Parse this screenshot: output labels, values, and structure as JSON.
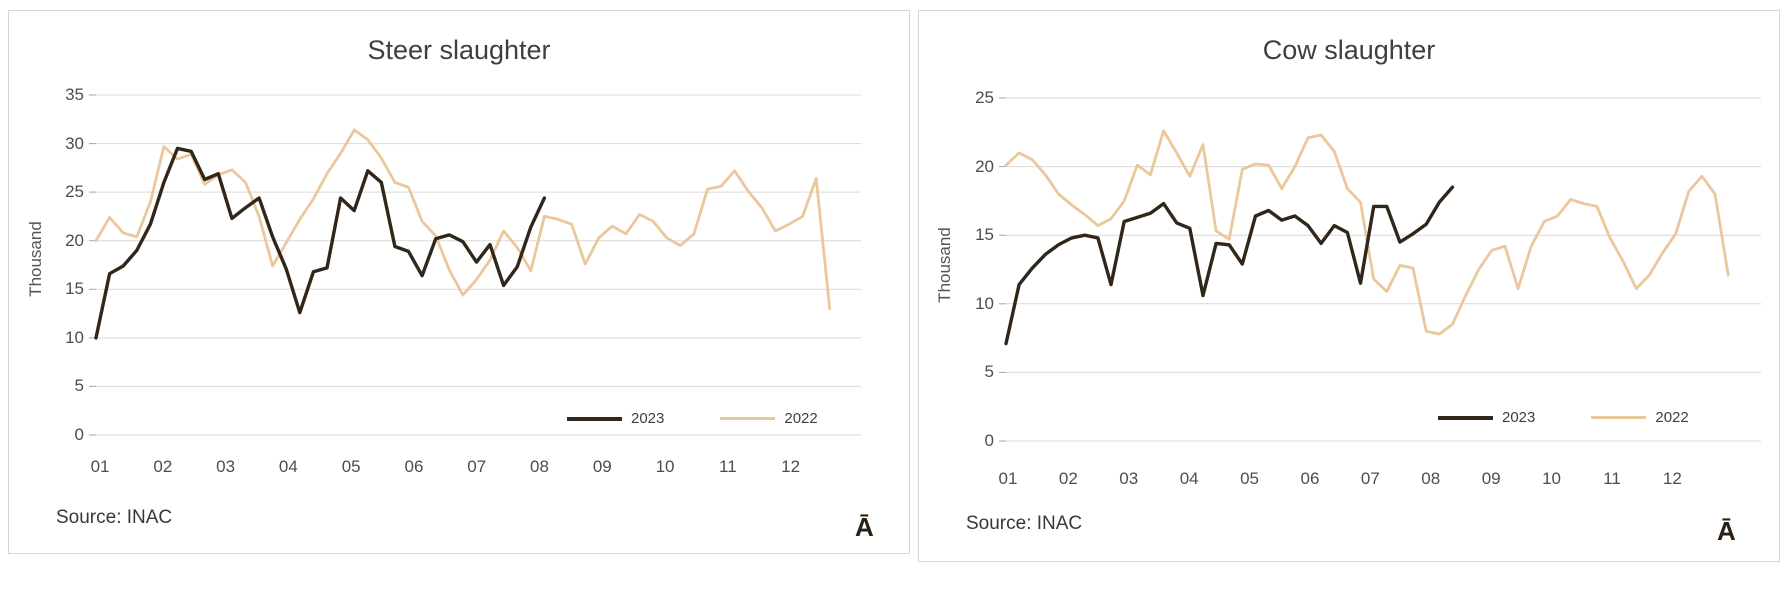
{
  "page": {
    "background": "#ffffff"
  },
  "colors": {
    "panel_border": "#d6d6d6",
    "gridline": "#d9d9d9",
    "axis_tick": "#a6a6a6",
    "axis_text": "#4d4d4d",
    "title_text": "#3f3f3f",
    "series_2023": "#31261a",
    "series_2022": "#ebc79c"
  },
  "chart_data": [
    {
      "type": "line",
      "title": "Steer slaughter",
      "ylabel": "Thousand",
      "xlabel": "",
      "source_note": "Source: INAC",
      "watermark": "Ā",
      "grid": true,
      "legend_position": "inside-bottom-right",
      "ylim": [
        0,
        35
      ],
      "yticks": [
        0,
        5,
        10,
        15,
        20,
        25,
        30,
        35
      ],
      "x_axis": {
        "labels": [
          "01",
          "02",
          "03",
          "04",
          "05",
          "06",
          "07",
          "08",
          "09",
          "10",
          "11",
          "12"
        ],
        "first_tick_week": 0.3,
        "weeks_per_month": 4.62,
        "total_week_slots": 56.3
      },
      "series": [
        {
          "label": "2023",
          "color_key": "series_2023",
          "stroke_width": 3.4,
          "values": [
            10.0,
            16.6,
            17.4,
            19.0,
            21.7,
            26.0,
            29.5,
            29.2,
            26.3,
            26.9,
            22.3,
            23.4,
            24.4,
            20.4,
            17.1,
            12.6,
            16.8,
            17.2,
            24.4,
            23.1,
            27.2,
            26.0,
            19.4,
            18.9,
            16.4,
            20.2,
            20.6,
            19.9,
            17.8,
            19.6,
            15.4,
            17.3,
            21.4,
            24.4
          ]
        },
        {
          "label": "2022",
          "color_key": "series_2022",
          "stroke_width": 2.8,
          "values": [
            20.0,
            22.4,
            20.8,
            20.4,
            24.0,
            29.7,
            28.4,
            28.9,
            25.8,
            26.8,
            27.3,
            26.0,
            22.5,
            17.4,
            19.8,
            22.2,
            24.3,
            26.9,
            29.0,
            31.4,
            30.4,
            28.5,
            26.0,
            25.5,
            22.0,
            20.5,
            17.0,
            14.4,
            16.0,
            18.0,
            21.0,
            19.3,
            16.9,
            22.5,
            22.2,
            21.7,
            17.6,
            20.3,
            21.5,
            20.7,
            22.7,
            22.0,
            20.3,
            19.5,
            20.7,
            25.3,
            25.6,
            27.2,
            25.1,
            23.4,
            21.0,
            21.7,
            22.5,
            26.4,
            13.0
          ]
        }
      ]
    },
    {
      "type": "line",
      "title": "Cow slaughter",
      "ylabel": "Thousand",
      "xlabel": "",
      "source_note": "Source: INAC",
      "watermark": "Ā",
      "grid": true,
      "legend_position": "inside-bottom-right",
      "ylim": [
        0,
        25
      ],
      "yticks": [
        0,
        5,
        10,
        15,
        20,
        25
      ],
      "x_axis": {
        "labels": [
          "01",
          "02",
          "03",
          "04",
          "05",
          "06",
          "07",
          "08",
          "09",
          "10",
          "11",
          "12"
        ],
        "first_tick_week": 0.15,
        "weeks_per_month": 4.6,
        "total_week_slots": 57.5
      },
      "series": [
        {
          "label": "2023",
          "color_key": "series_2023",
          "stroke_width": 3.4,
          "values": [
            7.1,
            11.4,
            12.6,
            13.6,
            14.3,
            14.8,
            15.0,
            14.8,
            11.4,
            16.0,
            16.3,
            16.6,
            17.3,
            15.9,
            15.5,
            10.6,
            14.4,
            14.3,
            12.9,
            16.4,
            16.8,
            16.1,
            16.4,
            15.7,
            14.4,
            15.7,
            15.2,
            11.5,
            17.1,
            17.1,
            14.5,
            15.1,
            15.8,
            17.4,
            18.5
          ]
        },
        {
          "label": "2022",
          "color_key": "series_2022",
          "stroke_width": 2.8,
          "values": [
            20.1,
            21.0,
            20.5,
            19.4,
            18.0,
            17.2,
            16.5,
            15.7,
            16.2,
            17.5,
            20.1,
            19.4,
            22.6,
            21.0,
            19.3,
            21.6,
            15.3,
            14.7,
            19.8,
            20.2,
            20.1,
            18.4,
            20.0,
            22.1,
            22.3,
            21.1,
            18.4,
            17.4,
            11.8,
            10.9,
            12.8,
            12.6,
            8.0,
            7.8,
            8.5,
            10.6,
            12.5,
            13.9,
            14.2,
            11.1,
            14.2,
            16.0,
            16.4,
            17.6,
            17.3,
            17.1,
            14.8,
            13.1,
            11.1,
            12.1,
            13.7,
            15.1,
            18.2,
            19.3,
            18.0,
            12.1
          ]
        }
      ]
    }
  ]
}
